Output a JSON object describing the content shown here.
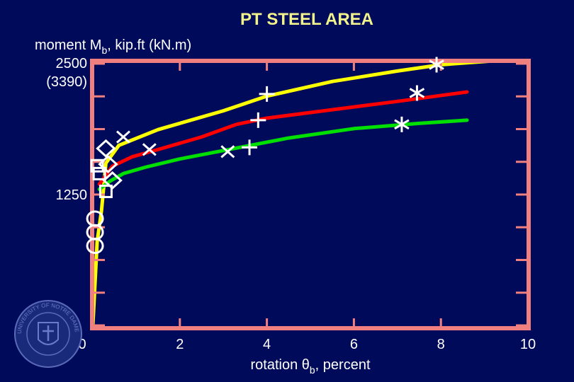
{
  "chart_data": {
    "type": "line",
    "title": "PT STEEL AREA",
    "ylabel": {
      "pre": "moment M",
      "sub": "b",
      "post": ", kip.ft (kN.m)"
    },
    "xlabel": {
      "pre": "rotation θ",
      "sub": "b",
      "post": ", percent"
    },
    "xlim": [
      0,
      10
    ],
    "ylim": [
      0,
      2500
    ],
    "x_ticks": [
      0,
      2,
      4,
      6,
      8,
      10
    ],
    "x_tick_labels": [
      "0",
      "2",
      "4",
      "6",
      "8",
      "10"
    ],
    "y_tick_labels": [
      {
        "value": 2500,
        "lines": [
          "2500",
          "(3390)"
        ]
      },
      {
        "value": 1250,
        "lines": [
          "1250"
        ]
      }
    ],
    "grid": false,
    "series": [
      {
        "color": "#ffff00",
        "x": [
          0,
          0.1,
          0.2,
          0.3,
          0.6,
          1.5,
          3.0,
          4.0,
          5.5,
          7.0,
          8.0,
          9.3
        ],
        "y": [
          0,
          800,
          1100,
          1550,
          1720,
          1870,
          2050,
          2190,
          2330,
          2430,
          2490,
          2530
        ]
      },
      {
        "color": "#ff0000",
        "x": [
          0.15,
          0.45,
          0.9,
          1.5,
          2.5,
          3.3,
          4.0,
          5.5,
          7.0,
          8.6
        ],
        "y": [
          1350,
          1520,
          1610,
          1680,
          1800,
          1920,
          1980,
          2060,
          2140,
          2230
        ]
      },
      {
        "color": "#00e000",
        "x": [
          0.15,
          0.4,
          0.7,
          1.2,
          2.0,
          3.0,
          3.5,
          4.5,
          6.0,
          7.5,
          8.6
        ],
        "y": [
          1300,
          1380,
          1450,
          1510,
          1590,
          1670,
          1710,
          1790,
          1880,
          1930,
          1960
        ]
      }
    ],
    "markers": [
      {
        "symbol": "circle",
        "x": 0.05,
        "y": 1020
      },
      {
        "symbol": "circle",
        "x": 0.05,
        "y": 890
      },
      {
        "symbol": "circle",
        "x": 0.05,
        "y": 760
      },
      {
        "symbol": "square",
        "x": 0.1,
        "y": 1525
      },
      {
        "symbol": "square",
        "x": 0.15,
        "y": 1450
      },
      {
        "symbol": "square",
        "x": 0.3,
        "y": 1280
      },
      {
        "symbol": "diamond",
        "x": 0.3,
        "y": 1690
      },
      {
        "symbol": "diamond",
        "x": 0.35,
        "y": 1540
      },
      {
        "symbol": "diamond",
        "x": 0.45,
        "y": 1385
      },
      {
        "symbol": "cross",
        "x": 0.7,
        "y": 1800
      },
      {
        "symbol": "cross",
        "x": 1.3,
        "y": 1680
      },
      {
        "symbol": "cross",
        "x": 3.1,
        "y": 1660
      },
      {
        "symbol": "plus",
        "x": 4.0,
        "y": 2210
      },
      {
        "symbol": "plus",
        "x": 3.8,
        "y": 1960
      },
      {
        "symbol": "plus",
        "x": 3.6,
        "y": 1700
      },
      {
        "symbol": "asterisk",
        "x": 7.9,
        "y": 2490
      },
      {
        "symbol": "asterisk",
        "x": 7.45,
        "y": 2220
      },
      {
        "symbol": "asterisk",
        "x": 7.1,
        "y": 1920
      }
    ]
  },
  "colors": {
    "background": "#000a5a",
    "frame": "#f08080",
    "title": "#f2f28c",
    "markers": "#ffffff"
  },
  "seal": {
    "icon": "university-seal-icon",
    "text": "UNIVERSITY OF NOTRE DAME"
  }
}
